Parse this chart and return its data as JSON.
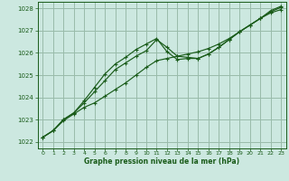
{
  "bg_color": "#cce8e0",
  "grid_color": "#99bbaa",
  "line_color": "#1a5c1a",
  "marker_color": "#1a5c1a",
  "xlabel": "Graphe pression niveau de la mer (hPa)",
  "xlim": [
    -0.5,
    23.5
  ],
  "ylim": [
    1021.7,
    1028.3
  ],
  "yticks": [
    1022,
    1023,
    1024,
    1025,
    1026,
    1027,
    1028
  ],
  "xticks": [
    0,
    1,
    2,
    3,
    4,
    5,
    6,
    7,
    8,
    9,
    10,
    11,
    12,
    13,
    14,
    15,
    16,
    17,
    18,
    19,
    20,
    21,
    22,
    23
  ],
  "series": [
    [
      1022.2,
      1022.5,
      1022.95,
      1023.25,
      1023.55,
      1023.75,
      1024.05,
      1024.35,
      1024.65,
      1025.0,
      1025.35,
      1025.65,
      1025.75,
      1025.85,
      1025.95,
      1026.05,
      1026.2,
      1026.4,
      1026.65,
      1026.95,
      1027.25,
      1027.55,
      1027.8,
      1027.95
    ],
    [
      1022.2,
      1022.5,
      1023.0,
      1023.3,
      1023.75,
      1024.25,
      1024.75,
      1025.25,
      1025.55,
      1025.85,
      1026.1,
      1026.6,
      1026.25,
      1025.85,
      1025.8,
      1025.75,
      1025.95,
      1026.25,
      1026.6,
      1026.95,
      1027.25,
      1027.55,
      1027.85,
      1028.05
    ],
    [
      1022.2,
      1022.5,
      1023.0,
      1023.3,
      1023.85,
      1024.45,
      1025.05,
      1025.5,
      1025.8,
      1026.15,
      1026.4,
      1026.65,
      1026.05,
      1025.7,
      1025.75,
      1025.75,
      1025.95,
      1026.25,
      1026.6,
      1026.95,
      1027.25,
      1027.55,
      1027.9,
      1028.1
    ]
  ]
}
